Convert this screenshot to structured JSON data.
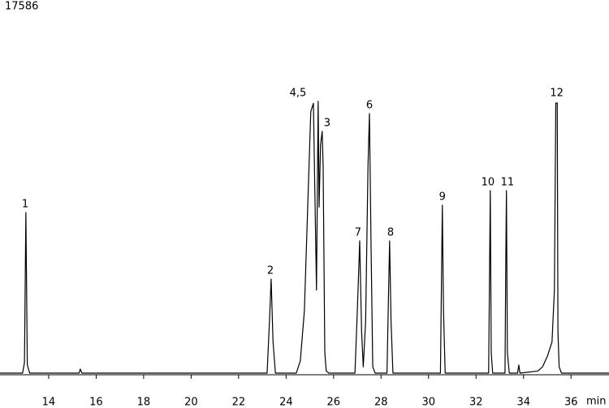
{
  "chart_data": {
    "type": "line",
    "x_label": "min",
    "xlim": [
      11.95,
      37.6
    ],
    "xticks": [
      14,
      16,
      18,
      20,
      22,
      24,
      26,
      28,
      30,
      32,
      34,
      36
    ],
    "ylim": [
      0,
      17586
    ],
    "yticks": [
      17586
    ],
    "series": [
      {
        "color": "#000000",
        "x": [
          11.95,
          12.9,
          12.98,
          13.04,
          13.1,
          13.2,
          15.28,
          15.33,
          15.4,
          23.2,
          23.3,
          23.37,
          23.45,
          23.55,
          24.43,
          24.6,
          24.77,
          24.91,
          25.04,
          25.15,
          25.28,
          25.35,
          25.39,
          25.45,
          25.52,
          25.56,
          25.63,
          25.69,
          25.8,
          26.9,
          27.0,
          27.1,
          27.18,
          27.25,
          27.35,
          27.45,
          27.51,
          27.58,
          27.65,
          27.75,
          28.25,
          28.3,
          28.36,
          28.42,
          28.5,
          30.5,
          30.54,
          30.58,
          30.63,
          30.7,
          32.53,
          32.57,
          32.6,
          32.64,
          32.7,
          33.22,
          33.25,
          33.28,
          33.32,
          33.4,
          33.75,
          33.8,
          33.85,
          34.6,
          34.8,
          35.0,
          35.2,
          35.3,
          35.36,
          35.42,
          35.45,
          35.5,
          35.6,
          37.6
        ],
        "values": [
          0,
          0,
          500,
          7740,
          400,
          0,
          0,
          195,
          0,
          0,
          2500,
          4530,
          1500,
          0,
          0,
          600,
          3000,
          8000,
          12600,
          13000,
          4000,
          13100,
          8000,
          11000,
          11650,
          10000,
          1000,
          100,
          0,
          0,
          3000,
          6370,
          2000,
          300,
          2500,
          10000,
          12505,
          6000,
          300,
          0,
          0,
          3000,
          6370,
          2500,
          0,
          0,
          4000,
          8090,
          3000,
          0,
          0,
          5000,
          8793,
          1000,
          0,
          0,
          5000,
          8793,
          1000,
          0,
          0,
          390,
          0,
          100,
          300,
          800,
          1500,
          4000,
          13014,
          13014,
          2000,
          300,
          0,
          0
        ]
      }
    ],
    "annotations": [
      {
        "text": "1",
        "x": 13.01,
        "y": 7740
      },
      {
        "text": "2",
        "x": 23.34,
        "y": 4530
      },
      {
        "text": "4,5",
        "x": 24.5,
        "y": 13100
      },
      {
        "text": "3",
        "x": 25.73,
        "y": 11650
      },
      {
        "text": "7",
        "x": 27.03,
        "y": 6370
      },
      {
        "text": "6",
        "x": 27.51,
        "y": 12505
      },
      {
        "text": "8",
        "x": 28.4,
        "y": 6370
      },
      {
        "text": "9",
        "x": 30.58,
        "y": 8090
      },
      {
        "text": "10",
        "x": 32.5,
        "y": 8793
      },
      {
        "text": "11",
        "x": 33.32,
        "y": 8793
      },
      {
        "text": "12",
        "x": 35.4,
        "y": 13100
      }
    ]
  }
}
